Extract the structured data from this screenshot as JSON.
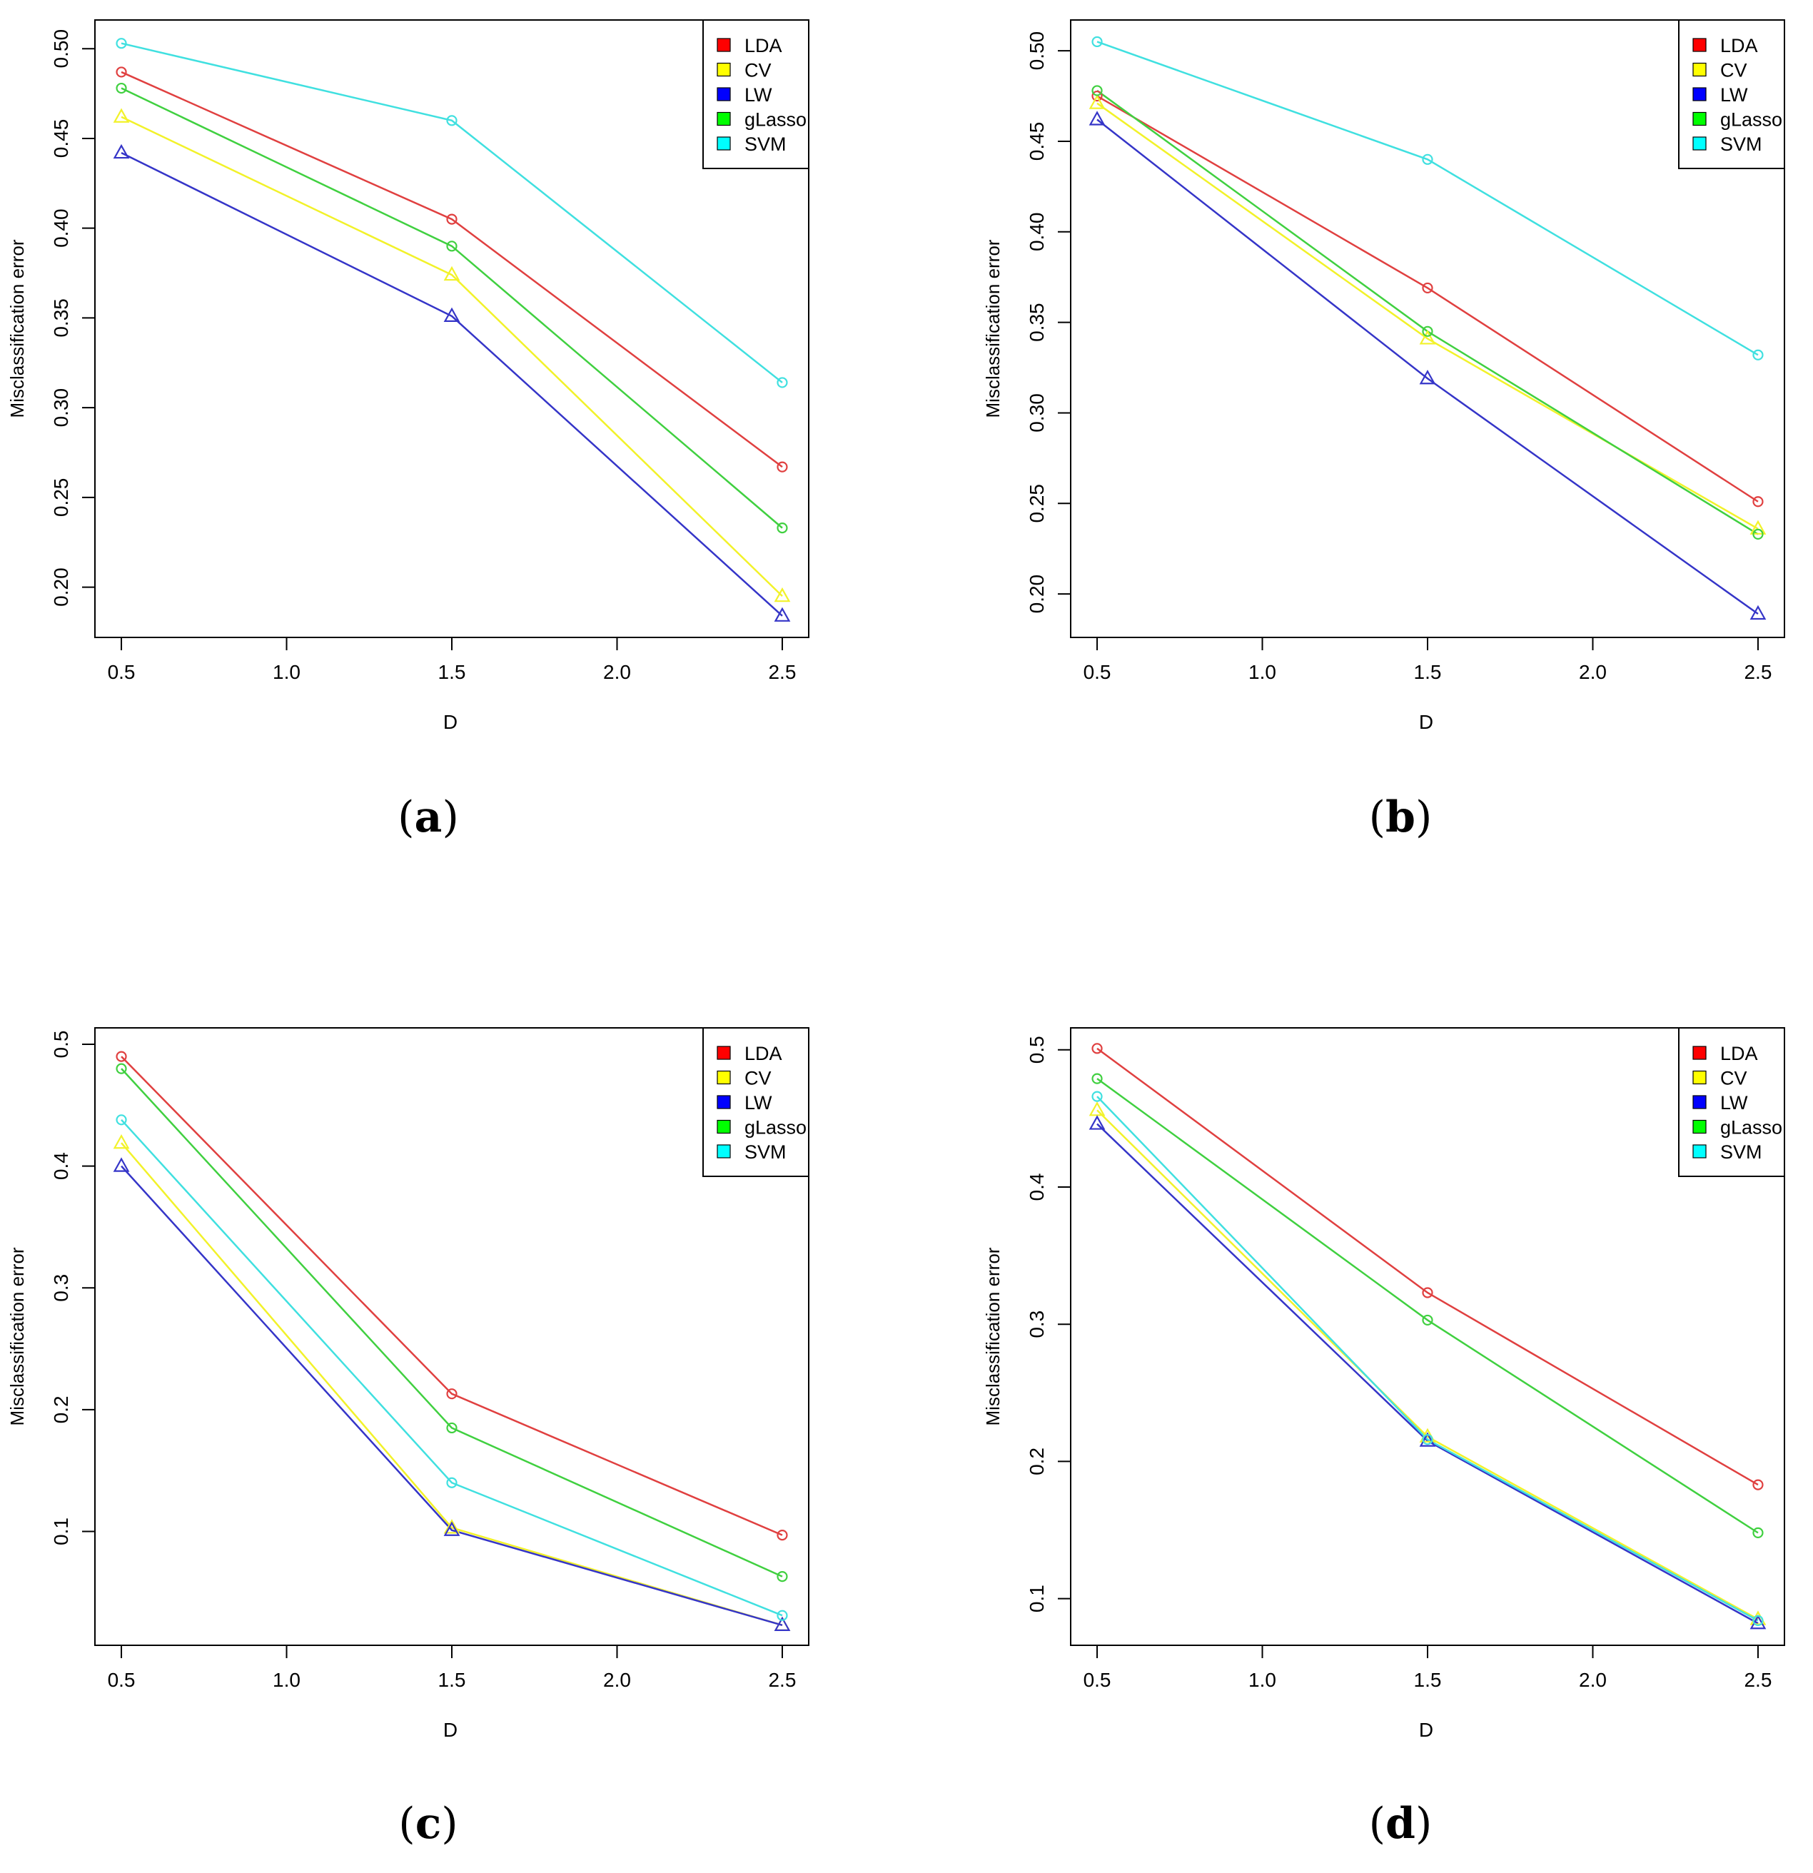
{
  "figure": {
    "series_names": [
      "LDA",
      "CV",
      "LW",
      "gLasso",
      "SVM"
    ],
    "series_colors": {
      "LDA": "#ff0000",
      "CV": "#ffff00",
      "LW": "#0000ff",
      "gLasso": "#00ff00",
      "SVM": "#00ffff"
    },
    "line_colors": {
      "LDA": "#e04040",
      "CV": "#f2f22a",
      "LW": "#3535c8",
      "gLasso": "#40d040",
      "SVM": "#40e0e0"
    },
    "marker_shapes": {
      "LDA": "circle",
      "CV": "triangle",
      "LW": "triangle",
      "gLasso": "circle",
      "SVM": "circle"
    }
  },
  "chart_data": [
    {
      "id": "a",
      "type": "line",
      "caption": "a",
      "xlabel": "D",
      "ylabel": "Misclassification error",
      "x": [
        0.5,
        1.5,
        2.5
      ],
      "xticks": [
        "0.5",
        "1.0",
        "1.5",
        "2.0",
        "2.5"
      ],
      "xtick_values": [
        0.5,
        1.0,
        1.5,
        2.0,
        2.5
      ],
      "yticks": [
        "0.20",
        "0.25",
        "0.30",
        "0.35",
        "0.40",
        "0.45",
        "0.50"
      ],
      "ytick_values": [
        0.2,
        0.25,
        0.3,
        0.35,
        0.4,
        0.45,
        0.5
      ],
      "xlim": [
        0.42,
        2.58
      ],
      "ylim": [
        0.172,
        0.516
      ],
      "legend_position": "top-right",
      "series": [
        {
          "name": "LDA",
          "values": [
            0.487,
            0.405,
            0.267
          ]
        },
        {
          "name": "CV",
          "values": [
            0.462,
            0.374,
            0.195
          ]
        },
        {
          "name": "LW",
          "values": [
            0.442,
            0.351,
            0.184
          ]
        },
        {
          "name": "gLasso",
          "values": [
            0.478,
            0.39,
            0.233
          ]
        },
        {
          "name": "SVM",
          "values": [
            0.503,
            0.46,
            0.314
          ]
        }
      ]
    },
    {
      "id": "b",
      "type": "line",
      "caption": "b",
      "xlabel": "D",
      "ylabel": "Misclassification error",
      "x": [
        0.5,
        1.5,
        2.5
      ],
      "xticks": [
        "0.5",
        "1.0",
        "1.5",
        "2.0",
        "2.5"
      ],
      "xtick_values": [
        0.5,
        1.0,
        1.5,
        2.0,
        2.5
      ],
      "yticks": [
        "0.20",
        "0.25",
        "0.30",
        "0.35",
        "0.40",
        "0.45",
        "0.50"
      ],
      "ytick_values": [
        0.2,
        0.25,
        0.3,
        0.35,
        0.4,
        0.45,
        0.5
      ],
      "xlim": [
        0.42,
        2.58
      ],
      "ylim": [
        0.176,
        0.517
      ],
      "legend_position": "top-right",
      "series": [
        {
          "name": "LDA",
          "values": [
            0.475,
            0.369,
            0.251
          ]
        },
        {
          "name": "CV",
          "values": [
            0.471,
            0.341,
            0.236
          ]
        },
        {
          "name": "LW",
          "values": [
            0.462,
            0.319,
            0.189
          ]
        },
        {
          "name": "gLasso",
          "values": [
            0.478,
            0.345,
            0.233
          ]
        },
        {
          "name": "SVM",
          "values": [
            0.505,
            0.44,
            0.332
          ]
        }
      ]
    },
    {
      "id": "c",
      "type": "line",
      "caption": "c",
      "xlabel": "D",
      "ylabel": "Misclassification error",
      "x": [
        0.5,
        1.5,
        2.5
      ],
      "xticks": [
        "0.5",
        "1.0",
        "1.5",
        "2.0",
        "2.5"
      ],
      "xtick_values": [
        0.5,
        1.0,
        1.5,
        2.0,
        2.5
      ],
      "yticks": [
        "0.1",
        "0.2",
        "0.3",
        "0.4",
        "0.5"
      ],
      "ytick_values": [
        0.1,
        0.2,
        0.3,
        0.4,
        0.5
      ],
      "xlim": [
        0.42,
        2.58
      ],
      "ylim": [
        0.0065,
        0.5135
      ],
      "legend_position": "top-right",
      "series": [
        {
          "name": "LDA",
          "values": [
            0.49,
            0.213,
            0.097
          ]
        },
        {
          "name": "CV",
          "values": [
            0.419,
            0.103,
            0.023
          ]
        },
        {
          "name": "LW",
          "values": [
            0.4,
            0.101,
            0.023
          ]
        },
        {
          "name": "gLasso",
          "values": [
            0.48,
            0.185,
            0.063
          ]
        },
        {
          "name": "SVM",
          "values": [
            0.438,
            0.14,
            0.031
          ]
        }
      ]
    },
    {
      "id": "d",
      "type": "line",
      "caption": "d",
      "xlabel": "D",
      "ylabel": "Misclassification error",
      "x": [
        0.5,
        1.5,
        2.5
      ],
      "xticks": [
        "0.5",
        "1.0",
        "1.5",
        "2.0",
        "2.5"
      ],
      "xtick_values": [
        0.5,
        1.0,
        1.5,
        2.0,
        2.5
      ],
      "yticks": [
        "0.1",
        "0.2",
        "0.3",
        "0.4",
        "0.5"
      ],
      "ytick_values": [
        0.1,
        0.2,
        0.3,
        0.4,
        0.5
      ],
      "xlim": [
        0.42,
        2.58
      ],
      "ylim": [
        0.066,
        0.516
      ],
      "legend_position": "top-right",
      "series": [
        {
          "name": "LDA",
          "values": [
            0.501,
            0.323,
            0.183
          ]
        },
        {
          "name": "CV",
          "values": [
            0.456,
            0.218,
            0.085
          ]
        },
        {
          "name": "LW",
          "values": [
            0.446,
            0.215,
            0.082
          ]
        },
        {
          "name": "gLasso",
          "values": [
            0.479,
            0.303,
            0.148
          ]
        },
        {
          "name": "SVM",
          "values": [
            0.466,
            0.216,
            0.084
          ]
        }
      ]
    }
  ]
}
